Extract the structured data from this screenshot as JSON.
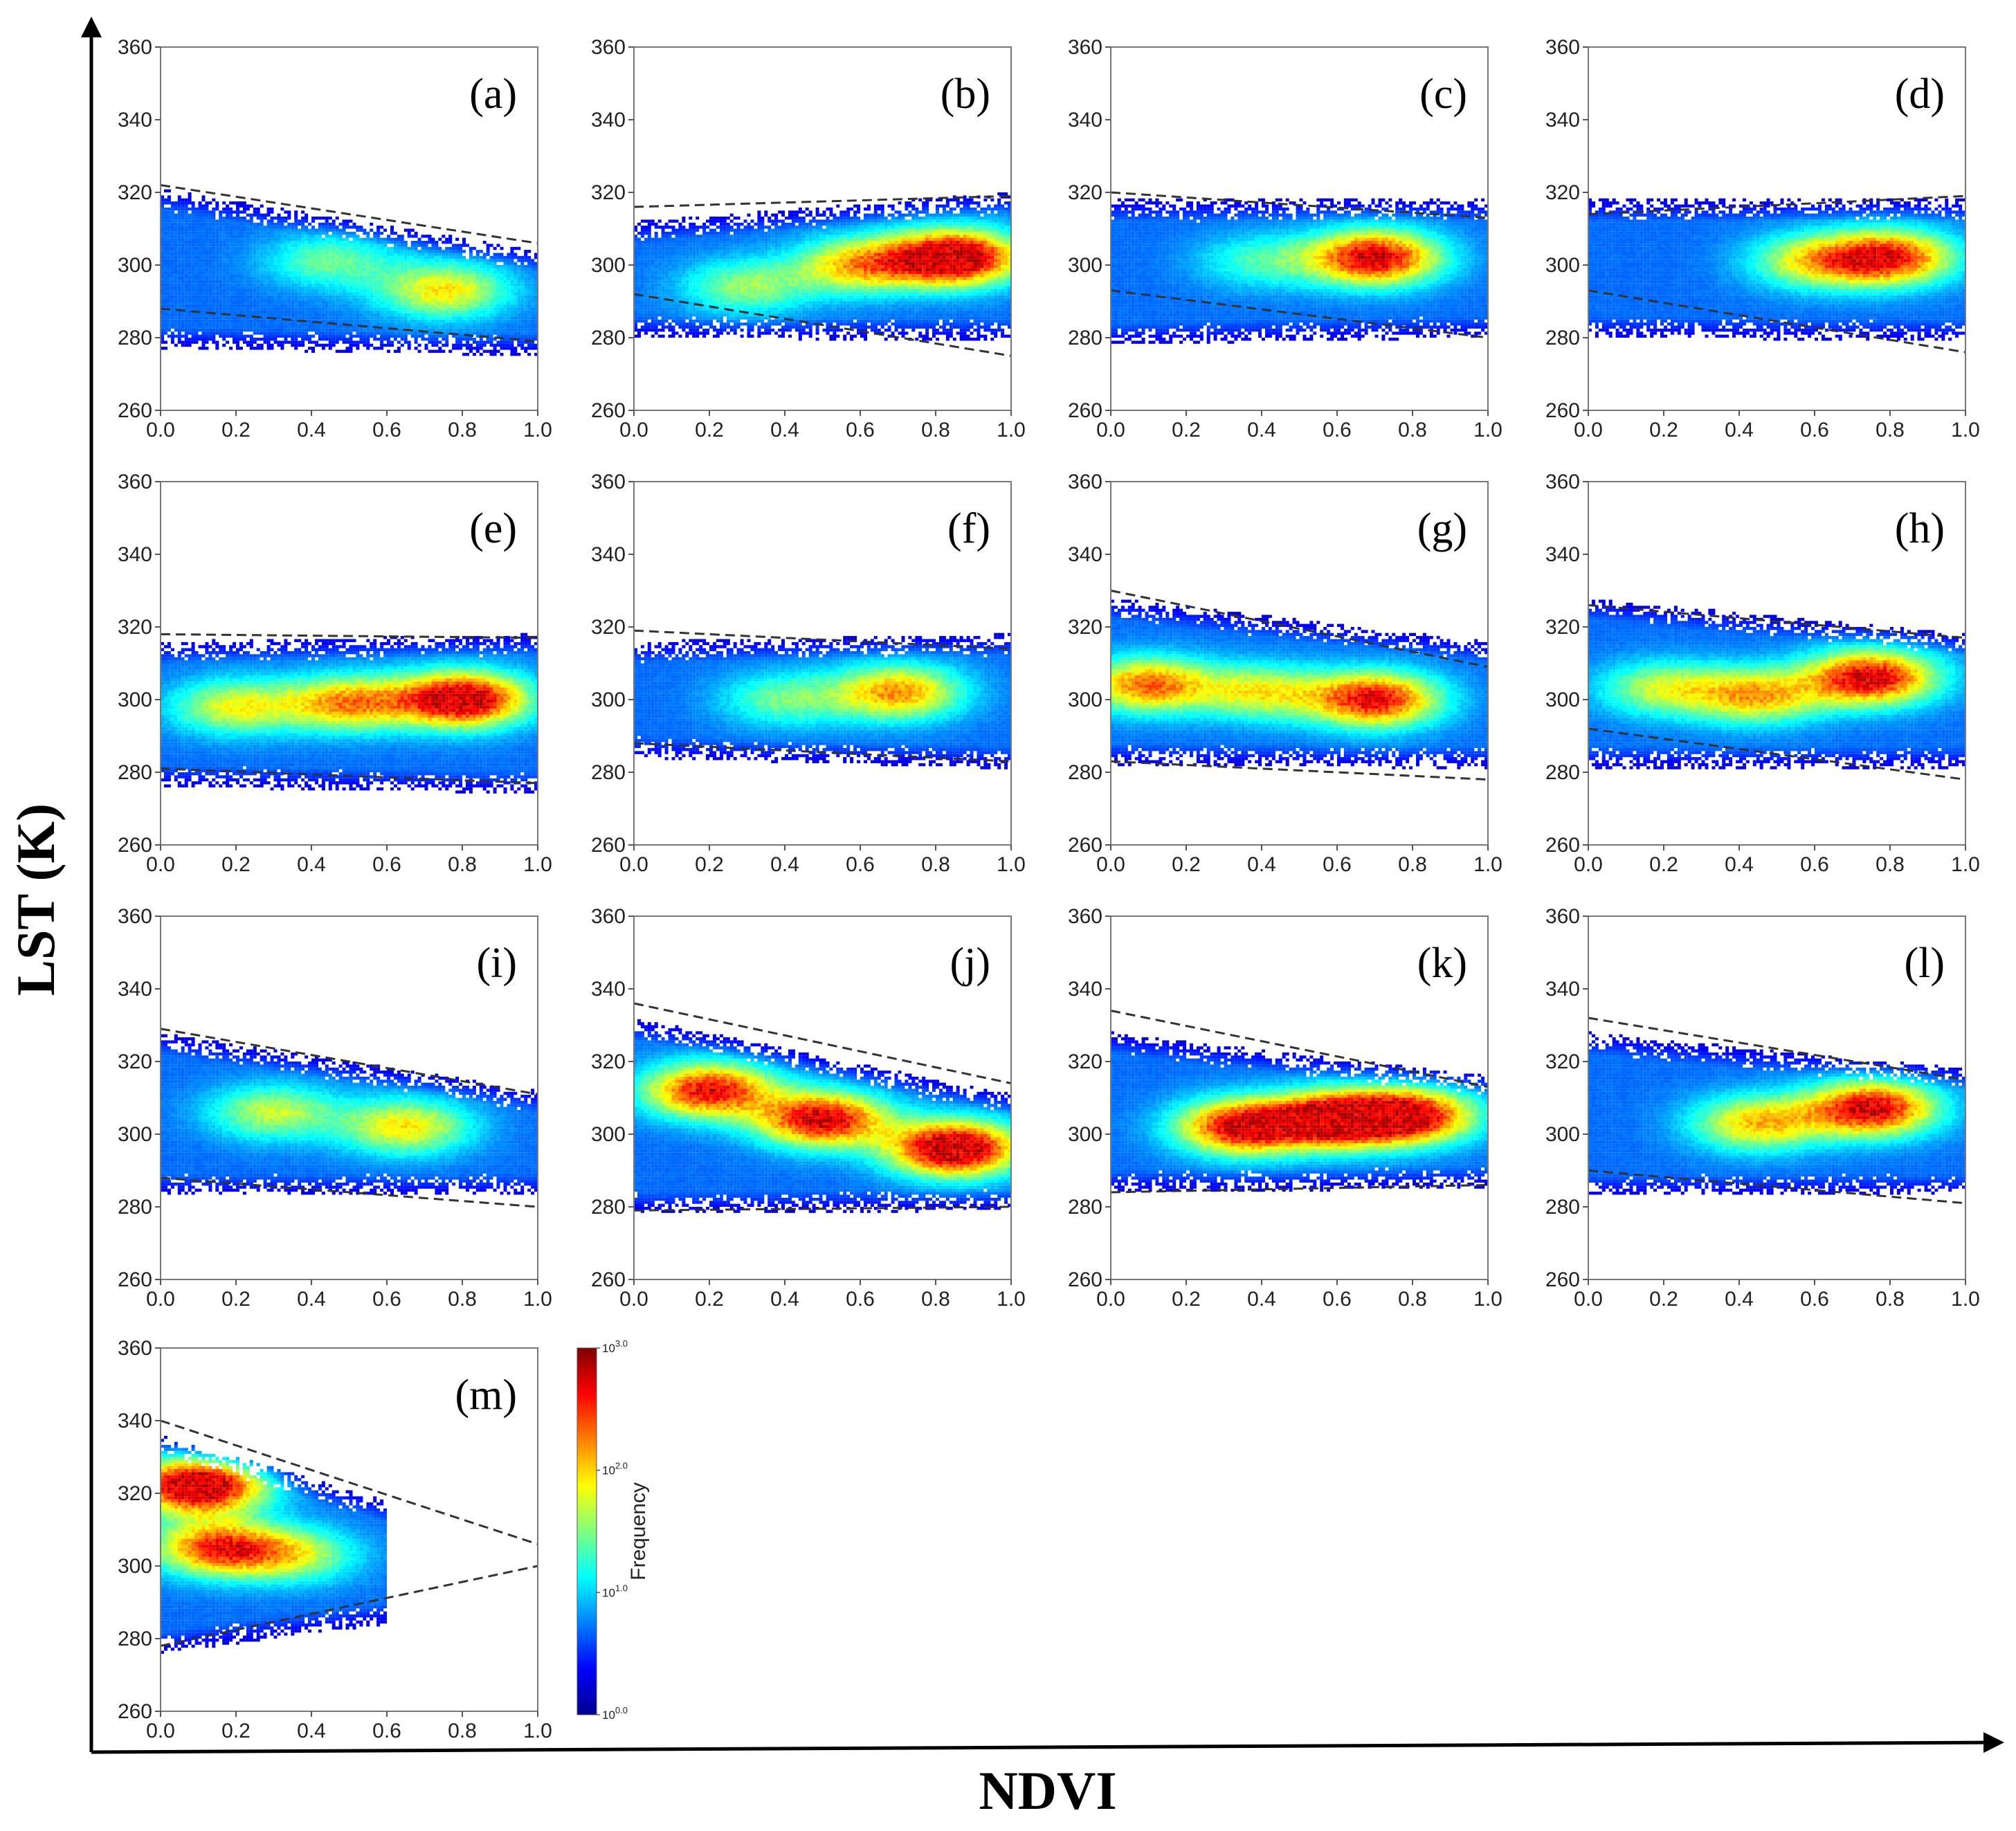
{
  "figure": {
    "ylabel": "LST (K)",
    "xlabel": "NDVI"
  },
  "colorbar": {
    "title": "Frequency",
    "tick_labels": [
      "10^{0.0}",
      "10^{1.0}",
      "10^{2.0}",
      "10^{3.0}"
    ],
    "tick_values": [
      0,
      1,
      2,
      3
    ],
    "colormap": [
      "#00008f",
      "#0000ff",
      "#0080ff",
      "#00ffff",
      "#80ff80",
      "#ffff00",
      "#ff8000",
      "#ff0000",
      "#800000"
    ]
  },
  "chart_data": [
    {
      "type": "heatmap",
      "panel": "(a)",
      "xlim": [
        0,
        1
      ],
      "ylim": [
        260,
        360
      ],
      "x_ticks": [
        "0.0",
        "0.2",
        "0.4",
        "0.6",
        "0.8",
        "1.0"
      ],
      "y_ticks": [
        "260",
        "280",
        "300",
        "320",
        "340",
        "360"
      ],
      "dry_edge": [
        [
          0,
          322
        ],
        [
          1,
          306
        ]
      ],
      "wet_edge": [
        [
          0,
          288
        ],
        [
          1,
          279
        ]
      ],
      "hotspots": [
        {
          "ndvi": 0.75,
          "lst": 293,
          "intensity": 0.5
        },
        {
          "ndvi": 0.45,
          "lst": 301,
          "intensity": 0.3
        }
      ],
      "point_envelope": {
        "x": [
          0.0,
          1.0
        ],
        "lst_low": [
          283,
          281
        ],
        "lst_high": [
          315,
          298
        ]
      }
    },
    {
      "type": "heatmap",
      "panel": "(b)",
      "xlim": [
        0,
        1
      ],
      "ylim": [
        260,
        360
      ],
      "x_ticks": [
        "0.0",
        "0.2",
        "0.4",
        "0.6",
        "0.8",
        "1.0"
      ],
      "y_ticks": [
        "260",
        "280",
        "300",
        "320",
        "340",
        "360"
      ],
      "dry_edge": [
        [
          0,
          316
        ],
        [
          1,
          319
        ]
      ],
      "wet_edge": [
        [
          0,
          292
        ],
        [
          1,
          275
        ]
      ],
      "hotspots": [
        {
          "ndvi": 0.85,
          "lst": 302,
          "intensity": 1.0
        },
        {
          "ndvi": 0.6,
          "lst": 300,
          "intensity": 0.55
        },
        {
          "ndvi": 0.3,
          "lst": 294,
          "intensity": 0.35
        }
      ],
      "point_envelope": {
        "x": [
          0.0,
          1.0
        ],
        "lst_low": [
          286,
          285
        ],
        "lst_high": [
          306,
          314
        ]
      }
    },
    {
      "type": "heatmap",
      "panel": "(c)",
      "xlim": [
        0,
        1
      ],
      "ylim": [
        260,
        360
      ],
      "x_ticks": [
        "0.0",
        "0.2",
        "0.4",
        "0.6",
        "0.8",
        "1.0"
      ],
      "y_ticks": [
        "260",
        "280",
        "300",
        "320",
        "340",
        "360"
      ],
      "dry_edge": [
        [
          0,
          320
        ],
        [
          1,
          313
        ]
      ],
      "wet_edge": [
        [
          0,
          293
        ],
        [
          1,
          280
        ]
      ],
      "hotspots": [
        {
          "ndvi": 0.7,
          "lst": 302,
          "intensity": 0.85
        },
        {
          "ndvi": 0.4,
          "lst": 301,
          "intensity": 0.25
        }
      ],
      "point_envelope": {
        "x": [
          0.0,
          1.0
        ],
        "lst_low": [
          284,
          286
        ],
        "lst_high": [
          312,
          312
        ]
      }
    },
    {
      "type": "heatmap",
      "panel": "(d)",
      "xlim": [
        0,
        1
      ],
      "ylim": [
        260,
        360
      ],
      "x_ticks": [
        "0.0",
        "0.2",
        "0.4",
        "0.6",
        "0.8",
        "1.0"
      ],
      "y_ticks": [
        "260",
        "280",
        "300",
        "320",
        "340",
        "360"
      ],
      "dry_edge": [
        [
          0,
          314
        ],
        [
          1,
          319
        ]
      ],
      "wet_edge": [
        [
          0,
          293
        ],
        [
          1,
          276
        ]
      ],
      "hotspots": [
        {
          "ndvi": 0.8,
          "lst": 302,
          "intensity": 0.75
        },
        {
          "ndvi": 0.6,
          "lst": 301,
          "intensity": 0.45
        }
      ],
      "point_envelope": {
        "x": [
          0.0,
          1.0
        ],
        "lst_low": [
          286,
          285
        ],
        "lst_high": [
          312,
          312
        ]
      }
    },
    {
      "type": "heatmap",
      "panel": "(e)",
      "xlim": [
        0,
        1
      ],
      "ylim": [
        260,
        360
      ],
      "x_ticks": [
        "0.0",
        "0.2",
        "0.4",
        "0.6",
        "0.8",
        "1.0"
      ],
      "y_ticks": [
        "260",
        "280",
        "300",
        "320",
        "340",
        "360"
      ],
      "dry_edge": [
        [
          0,
          318
        ],
        [
          1,
          317
        ]
      ],
      "wet_edge": [
        [
          0,
          281
        ],
        [
          1,
          277
        ]
      ],
      "hotspots": [
        {
          "ndvi": 0.8,
          "lst": 300,
          "intensity": 0.95
        },
        {
          "ndvi": 0.5,
          "lst": 299,
          "intensity": 0.6
        },
        {
          "ndvi": 0.2,
          "lst": 298,
          "intensity": 0.45
        }
      ],
      "point_envelope": {
        "x": [
          0.0,
          1.0
        ],
        "lst_low": [
          282,
          280
        ],
        "lst_high": [
          310,
          312
        ]
      }
    },
    {
      "type": "heatmap",
      "panel": "(f)",
      "xlim": [
        0,
        1
      ],
      "ylim": [
        260,
        360
      ],
      "x_ticks": [
        "0.0",
        "0.2",
        "0.4",
        "0.6",
        "0.8",
        "1.0"
      ],
      "y_ticks": [
        "260",
        "280",
        "300",
        "320",
        "340",
        "360"
      ],
      "dry_edge": [
        [
          0,
          319
        ],
        [
          1,
          314
        ]
      ],
      "wet_edge": [
        [
          0,
          288
        ],
        [
          1,
          283
        ]
      ],
      "hotspots": [
        {
          "ndvi": 0.7,
          "lst": 302,
          "intensity": 0.6
        },
        {
          "ndvi": 0.4,
          "lst": 300,
          "intensity": 0.3
        }
      ],
      "point_envelope": {
        "x": [
          0.0,
          1.0
        ],
        "lst_low": [
          290,
          287
        ],
        "lst_high": [
          310,
          312
        ]
      }
    },
    {
      "type": "heatmap",
      "panel": "(g)",
      "xlim": [
        0,
        1
      ],
      "ylim": [
        260,
        360
      ],
      "x_ticks": [
        "0.0",
        "0.2",
        "0.4",
        "0.6",
        "0.8",
        "1.0"
      ],
      "y_ticks": [
        "260",
        "280",
        "300",
        "320",
        "340",
        "360"
      ],
      "dry_edge": [
        [
          0,
          330
        ],
        [
          1,
          309
        ]
      ],
      "wet_edge": [
        [
          0,
          283
        ],
        [
          1,
          278
        ]
      ],
      "hotspots": [
        {
          "ndvi": 0.1,
          "lst": 304,
          "intensity": 0.65
        },
        {
          "ndvi": 0.7,
          "lst": 300,
          "intensity": 0.8
        },
        {
          "ndvi": 0.4,
          "lst": 302,
          "intensity": 0.45
        }
      ],
      "point_envelope": {
        "x": [
          0.0,
          1.0
        ],
        "lst_low": [
          288,
          287
        ],
        "lst_high": [
          322,
          310
        ]
      }
    },
    {
      "type": "heatmap",
      "panel": "(h)",
      "xlim": [
        0,
        1
      ],
      "ylim": [
        260,
        360
      ],
      "x_ticks": [
        "0.0",
        "0.2",
        "0.4",
        "0.6",
        "0.8",
        "1.0"
      ],
      "y_ticks": [
        "260",
        "280",
        "300",
        "320",
        "340",
        "360"
      ],
      "dry_edge": [
        [
          0,
          326
        ],
        [
          1,
          317
        ]
      ],
      "wet_edge": [
        [
          0,
          292
        ],
        [
          1,
          278
        ]
      ],
      "hotspots": [
        {
          "ndvi": 0.75,
          "lst": 306,
          "intensity": 0.85
        },
        {
          "ndvi": 0.45,
          "lst": 301,
          "intensity": 0.55
        },
        {
          "ndvi": 0.2,
          "lst": 303,
          "intensity": 0.4
        }
      ],
      "point_envelope": {
        "x": [
          0.0,
          1.0
        ],
        "lst_low": [
          287,
          287
        ],
        "lst_high": [
          322,
          312
        ]
      }
    },
    {
      "type": "heatmap",
      "panel": "(i)",
      "xlim": [
        0,
        1
      ],
      "ylim": [
        260,
        360
      ],
      "x_ticks": [
        "0.0",
        "0.2",
        "0.4",
        "0.6",
        "0.8",
        "1.0"
      ],
      "y_ticks": [
        "260",
        "280",
        "300",
        "320",
        "340",
        "360"
      ],
      "dry_edge": [
        [
          0,
          329
        ],
        [
          1,
          311
        ]
      ],
      "wet_edge": [
        [
          0,
          288
        ],
        [
          1,
          280
        ]
      ],
      "hotspots": [
        {
          "ndvi": 0.65,
          "lst": 302,
          "intensity": 0.5
        },
        {
          "ndvi": 0.3,
          "lst": 306,
          "intensity": 0.4
        }
      ],
      "point_envelope": {
        "x": [
          0.0,
          1.0
        ],
        "lst_low": [
          289,
          289
        ],
        "lst_high": [
          322,
          306
        ]
      }
    },
    {
      "type": "heatmap",
      "panel": "(j)",
      "xlim": [
        0,
        1
      ],
      "ylim": [
        260,
        360
      ],
      "x_ticks": [
        "0.0",
        "0.2",
        "0.4",
        "0.6",
        "0.8",
        "1.0"
      ],
      "y_ticks": [
        "260",
        "280",
        "300",
        "320",
        "340",
        "360"
      ],
      "dry_edge": [
        [
          0,
          336
        ],
        [
          1,
          314
        ]
      ],
      "wet_edge": [
        [
          0,
          279
        ],
        [
          1,
          280
        ]
      ],
      "hotspots": [
        {
          "ndvi": 0.85,
          "lst": 296,
          "intensity": 1.0
        },
        {
          "ndvi": 0.5,
          "lst": 304,
          "intensity": 0.85
        },
        {
          "ndvi": 0.2,
          "lst": 312,
          "intensity": 0.8
        }
      ],
      "point_envelope": {
        "x": [
          0.0,
          1.0
        ],
        "lst_low": [
          284,
          285
        ],
        "lst_high": [
          326,
          305
        ]
      }
    },
    {
      "type": "heatmap",
      "panel": "(k)",
      "xlim": [
        0,
        1
      ],
      "ylim": [
        260,
        360
      ],
      "x_ticks": [
        "0.0",
        "0.2",
        "0.4",
        "0.6",
        "0.8",
        "1.0"
      ],
      "y_ticks": [
        "260",
        "280",
        "300",
        "320",
        "340",
        "360"
      ],
      "dry_edge": [
        [
          0,
          334
        ],
        [
          1,
          313
        ]
      ],
      "wet_edge": [
        [
          0,
          284
        ],
        [
          1,
          286
        ]
      ],
      "hotspots": [
        {
          "ndvi": 0.6,
          "lst": 304,
          "intensity": 0.95
        },
        {
          "ndvi": 0.35,
          "lst": 302,
          "intensity": 0.85
        },
        {
          "ndvi": 0.8,
          "lst": 305,
          "intensity": 0.8
        }
      ],
      "point_envelope": {
        "x": [
          0.0,
          1.0
        ],
        "lst_low": [
          290,
          291
        ],
        "lst_high": [
          322,
          310
        ]
      }
    },
    {
      "type": "heatmap",
      "panel": "(l)",
      "xlim": [
        0,
        1
      ],
      "ylim": [
        260,
        360
      ],
      "x_ticks": [
        "0.0",
        "0.2",
        "0.4",
        "0.6",
        "0.8",
        "1.0"
      ],
      "y_ticks": [
        "260",
        "280",
        "300",
        "320",
        "340",
        "360"
      ],
      "dry_edge": [
        [
          0,
          332
        ],
        [
          1,
          315
        ]
      ],
      "wet_edge": [
        [
          0,
          290
        ],
        [
          1,
          281
        ]
      ],
      "hotspots": [
        {
          "ndvi": 0.75,
          "lst": 307,
          "intensity": 0.85
        },
        {
          "ndvi": 0.45,
          "lst": 303,
          "intensity": 0.55
        }
      ],
      "point_envelope": {
        "x": [
          0.0,
          1.0
        ],
        "lst_low": [
          289,
          289
        ],
        "lst_high": [
          322,
          312
        ]
      }
    },
    {
      "type": "heatmap",
      "panel": "(m)",
      "xlim": [
        0,
        1
      ],
      "ylim": [
        260,
        360
      ],
      "x_ticks": [
        "0.0",
        "0.2",
        "0.4",
        "0.6",
        "0.8",
        "1.0"
      ],
      "y_ticks": [
        "260",
        "280",
        "300",
        "320",
        "340",
        "360"
      ],
      "dry_edge": [
        [
          0,
          340
        ],
        [
          1,
          306
        ]
      ],
      "wet_edge": [
        [
          0,
          278
        ],
        [
          1,
          300
        ]
      ],
      "hotspots": [
        {
          "ndvi": 0.1,
          "lst": 322,
          "intensity": 1.0
        },
        {
          "ndvi": 0.15,
          "lst": 305,
          "intensity": 0.7
        },
        {
          "ndvi": 0.35,
          "lst": 303,
          "intensity": 0.4
        }
      ],
      "point_envelope": {
        "x": [
          0.0,
          0.6
        ],
        "lst_low": [
          282,
          290
        ],
        "lst_high": [
          330,
          312
        ]
      }
    }
  ]
}
